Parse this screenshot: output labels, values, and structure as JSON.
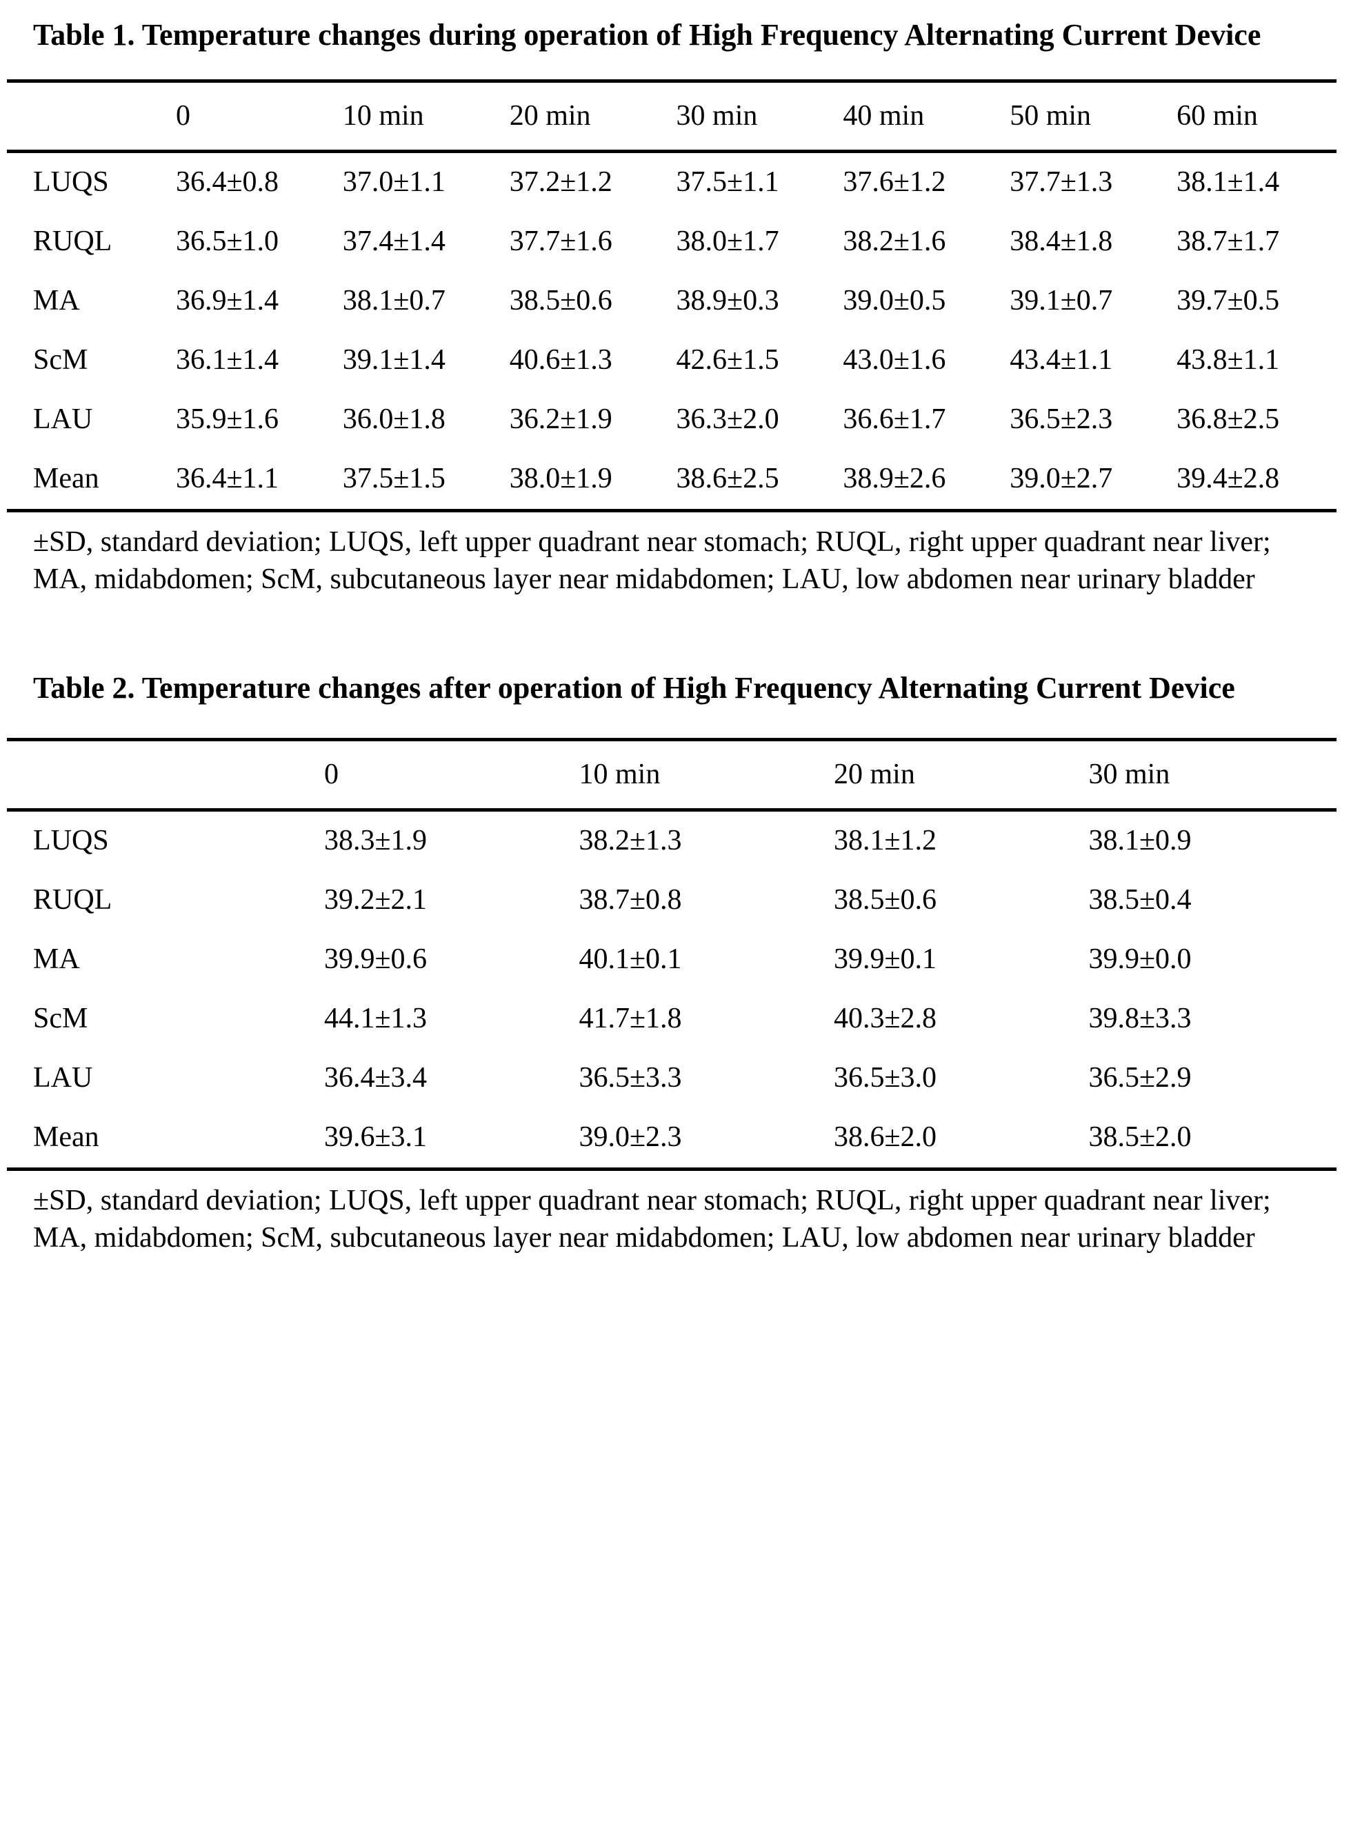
{
  "page": {
    "background_color": "#ffffff",
    "text_color": "#000000",
    "rule_color": "#000000"
  },
  "tables": [
    {
      "title": "Table 1. Temperature changes during operation of High Frequency Alternating Current Device",
      "columns": [
        "",
        "0",
        "10 min",
        "20 min",
        "30 min",
        "40 min",
        "50 min",
        "60 min"
      ],
      "rows": [
        {
          "label": "LUQS",
          "cells": [
            "36.4±0.8",
            "37.0±1.1",
            "37.2±1.2",
            "37.5±1.1",
            "37.6±1.2",
            "37.7±1.3",
            "38.1±1.4"
          ]
        },
        {
          "label": "RUQL",
          "cells": [
            "36.5±1.0",
            "37.4±1.4",
            "37.7±1.6",
            "38.0±1.7",
            "38.2±1.6",
            "38.4±1.8",
            "38.7±1.7"
          ]
        },
        {
          "label": "MA",
          "cells": [
            "36.9±1.4",
            "38.1±0.7",
            "38.5±0.6",
            "38.9±0.3",
            "39.0±0.5",
            "39.1±0.7",
            "39.7±0.5"
          ]
        },
        {
          "label": "ScM",
          "cells": [
            "36.1±1.4",
            "39.1±1.4",
            "40.6±1.3",
            "42.6±1.5",
            "43.0±1.6",
            "43.4±1.1",
            "43.8±1.1"
          ]
        },
        {
          "label": "LAU",
          "cells": [
            "35.9±1.6",
            "36.0±1.8",
            "36.2±1.9",
            "36.3±2.0",
            "36.6±1.7",
            "36.5±2.3",
            "36.8±2.5"
          ]
        },
        {
          "label": "Mean",
          "cells": [
            "36.4±1.1",
            "37.5±1.5",
            "38.0±1.9",
            "38.6±2.5",
            "38.9±2.6",
            "39.0±2.7",
            "39.4±2.8"
          ]
        }
      ],
      "footnote": "±SD, standard deviation; LUQS, left upper quadrant near stomach; RUQL, right upper quadrant near liver; MA, midabdomen; ScM, subcutaneous layer near midabdomen; LAU, low abdomen near urinary bladder"
    },
    {
      "title": "Table 2. Temperature changes after operation of High Frequency Alternating Current Device",
      "columns": [
        "",
        "0",
        "10 min",
        "20 min",
        "30 min"
      ],
      "rows": [
        {
          "label": "LUQS",
          "cells": [
            "38.3±1.9",
            "38.2±1.3",
            "38.1±1.2",
            "38.1±0.9"
          ]
        },
        {
          "label": "RUQL",
          "cells": [
            "39.2±2.1",
            "38.7±0.8",
            "38.5±0.6",
            "38.5±0.4"
          ]
        },
        {
          "label": "MA",
          "cells": [
            "39.9±0.6",
            "40.1±0.1",
            "39.9±0.1",
            "39.9±0.0"
          ]
        },
        {
          "label": "ScM",
          "cells": [
            "44.1±1.3",
            "41.7±1.8",
            "40.3±2.8",
            "39.8±3.3"
          ]
        },
        {
          "label": "LAU",
          "cells": [
            "36.4±3.4",
            "36.5±3.3",
            "36.5±3.0",
            "36.5±2.9"
          ]
        },
        {
          "label": "Mean",
          "cells": [
            "39.6±3.1",
            "39.0±2.3",
            "38.6±2.0",
            "38.5±2.0"
          ]
        }
      ],
      "footnote": "±SD, standard deviation; LUQS, left upper quadrant near stomach; RUQL, right upper quadrant near liver; MA, midabdomen; ScM, subcutaneous layer near midabdomen; LAU, low abdomen near urinary bladder"
    }
  ]
}
